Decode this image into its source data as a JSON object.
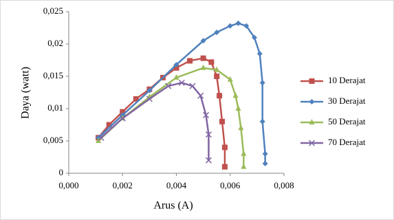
{
  "chart_data": {
    "type": "scatter",
    "x_label": "Arus (A)",
    "y_label": "Daya (watt)",
    "xlim": [
      0,
      0.008
    ],
    "xticks": [
      {
        "value": 0,
        "label": "0,000"
      },
      {
        "value": 0.002,
        "label": "0,002"
      },
      {
        "value": 0.004,
        "label": "0,004"
      },
      {
        "value": 0.006,
        "label": "0,006"
      },
      {
        "value": 0.008,
        "label": "0,008"
      }
    ],
    "ylim": [
      0,
      0.025
    ],
    "yticks": [
      0,
      {
        "value": 0.005,
        "label": "0,005"
      },
      {
        "value": 0.01,
        "label": "0,01"
      },
      {
        "value": 0.015,
        "label": "0,015"
      },
      {
        "value": 0.02,
        "label": "0,02"
      },
      {
        "value": 0.025,
        "label": "0,025"
      }
    ],
    "legend": "right",
    "series": [
      {
        "name": "10 Derajat",
        "color": "#c0504d",
        "marker": "square",
        "x": [
          0.0011,
          0.0015,
          0.002,
          0.0025,
          0.003,
          0.0035,
          0.004,
          0.0045,
          0.005,
          0.0053,
          0.0055,
          0.0056,
          0.0057,
          0.0058,
          0.0058
        ],
        "values": [
          0.0055,
          0.0075,
          0.0095,
          0.0115,
          0.013,
          0.0148,
          0.0163,
          0.0174,
          0.0178,
          0.0172,
          0.015,
          0.012,
          0.008,
          0.004,
          0.001
        ]
      },
      {
        "name": "30 Derajat",
        "color": "#4f81bd",
        "marker": "diamond",
        "x": [
          0.0011,
          0.002,
          0.003,
          0.004,
          0.005,
          0.0055,
          0.006,
          0.0063,
          0.0066,
          0.0069,
          0.0071,
          0.0072,
          0.0072,
          0.0073,
          0.0073
        ],
        "values": [
          0.0055,
          0.009,
          0.0128,
          0.0168,
          0.0205,
          0.0218,
          0.0228,
          0.0232,
          0.0228,
          0.021,
          0.0185,
          0.014,
          0.008,
          0.003,
          0.0015
        ]
      },
      {
        "name": "50 Derajat",
        "color": "#9bbb59",
        "marker": "triangle",
        "x": [
          0.0011,
          0.002,
          0.003,
          0.004,
          0.005,
          0.0055,
          0.006,
          0.0062,
          0.0063,
          0.0064,
          0.0065,
          0.0065
        ],
        "values": [
          0.005,
          0.0085,
          0.0118,
          0.0148,
          0.0163,
          0.016,
          0.0145,
          0.012,
          0.01,
          0.007,
          0.003,
          0.001
        ]
      },
      {
        "name": "70 Derajat",
        "color": "#8064a2",
        "marker": "x",
        "x": [
          0.0012,
          0.002,
          0.003,
          0.0037,
          0.0042,
          0.0046,
          0.0049,
          0.0051,
          0.0052,
          0.0052
        ],
        "values": [
          0.0055,
          0.0085,
          0.0115,
          0.0135,
          0.014,
          0.0135,
          0.012,
          0.009,
          0.006,
          0.002
        ]
      }
    ]
  }
}
